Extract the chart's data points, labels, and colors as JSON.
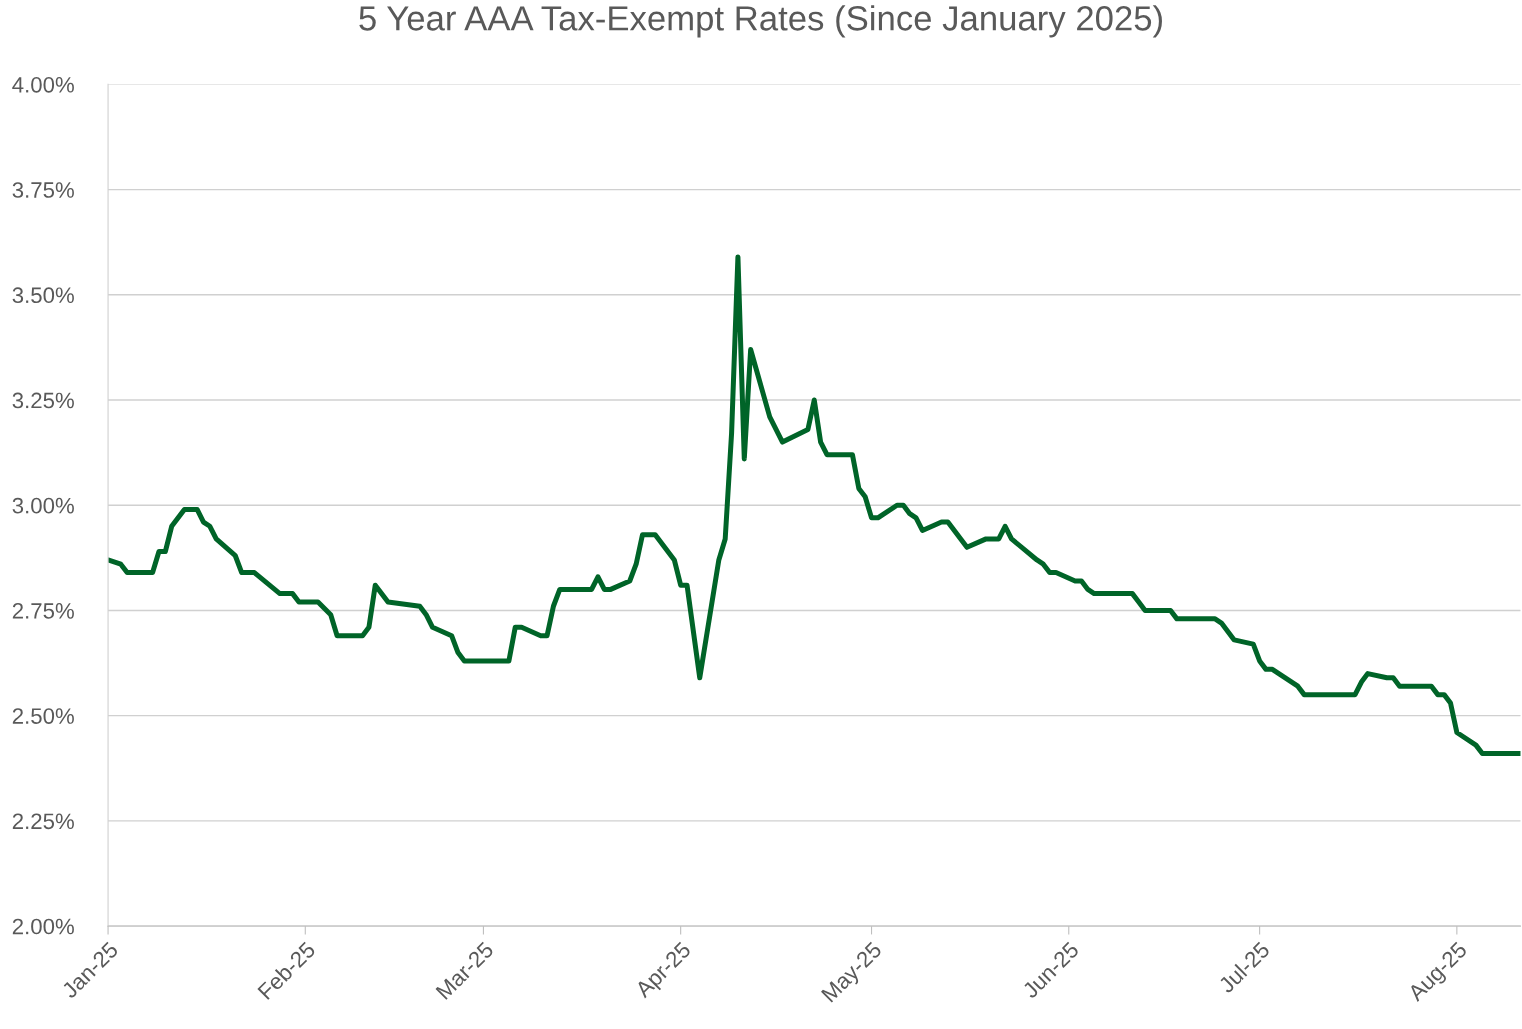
{
  "chart_data": {
    "type": "line",
    "title": "5 Year AAA Tax-Exempt Rates (Since January 2025)",
    "x": [
      "2025-01-01",
      "2025-01-03",
      "2025-01-04",
      "2025-01-08",
      "2025-01-09",
      "2025-01-10",
      "2025-01-11",
      "2025-01-13",
      "2025-01-15",
      "2025-01-16",
      "2025-01-17",
      "2025-01-18",
      "2025-01-21",
      "2025-01-22",
      "2025-01-24",
      "2025-01-28",
      "2025-01-30",
      "2025-01-31",
      "2025-02-03",
      "2025-02-05",
      "2025-02-06",
      "2025-02-10",
      "2025-02-11",
      "2025-02-12",
      "2025-02-14",
      "2025-02-19",
      "2025-02-20",
      "2025-02-21",
      "2025-02-24",
      "2025-02-25",
      "2025-02-26",
      "2025-03-05",
      "2025-03-06",
      "2025-03-07",
      "2025-03-10",
      "2025-03-11",
      "2025-03-12",
      "2025-03-13",
      "2025-03-18",
      "2025-03-19",
      "2025-03-20",
      "2025-03-21",
      "2025-03-24",
      "2025-03-25",
      "2025-03-26",
      "2025-03-28",
      "2025-03-31",
      "2025-04-01",
      "2025-04-02",
      "2025-04-04",
      "2025-04-07",
      "2025-04-08",
      "2025-04-09",
      "2025-04-10",
      "2025-04-11",
      "2025-04-12",
      "2025-04-15",
      "2025-04-17",
      "2025-04-21",
      "2025-04-22",
      "2025-04-23",
      "2025-04-24",
      "2025-04-28",
      "2025-04-29",
      "2025-04-30",
      "2025-05-01",
      "2025-05-02",
      "2025-05-05",
      "2025-05-06",
      "2025-05-07",
      "2025-05-08",
      "2025-05-09",
      "2025-05-12",
      "2025-05-13",
      "2025-05-16",
      "2025-05-19",
      "2025-05-21",
      "2025-05-22",
      "2025-05-23",
      "2025-05-27",
      "2025-05-28",
      "2025-05-29",
      "2025-05-30",
      "2025-06-02",
      "2025-06-03",
      "2025-06-04",
      "2025-06-05",
      "2025-06-11",
      "2025-06-12",
      "2025-06-13",
      "2025-06-17",
      "2025-06-18",
      "2025-06-24",
      "2025-06-25",
      "2025-06-27",
      "2025-06-30",
      "2025-07-01",
      "2025-07-02",
      "2025-07-03",
      "2025-07-07",
      "2025-07-08",
      "2025-07-16",
      "2025-07-17",
      "2025-07-18",
      "2025-07-21",
      "2025-07-22",
      "2025-07-23",
      "2025-07-28",
      "2025-07-29",
      "2025-07-30",
      "2025-07-31",
      "2025-08-01",
      "2025-08-04",
      "2025-08-05",
      "2025-08-11"
    ],
    "series": [
      {
        "color": "#006428",
        "values": [
          2.87,
          2.86,
          2.84,
          2.84,
          2.89,
          2.89,
          2.95,
          2.99,
          2.99,
          2.96,
          2.95,
          2.92,
          2.88,
          2.84,
          2.84,
          2.79,
          2.79,
          2.77,
          2.77,
          2.74,
          2.69,
          2.69,
          2.71,
          2.81,
          2.77,
          2.76,
          2.74,
          2.71,
          2.69,
          2.65,
          2.63,
          2.63,
          2.71,
          2.71,
          2.69,
          2.69,
          2.76,
          2.8,
          2.8,
          2.83,
          2.8,
          2.8,
          2.82,
          2.86,
          2.93,
          2.93,
          2.87,
          2.81,
          2.81,
          2.59,
          2.87,
          2.92,
          3.17,
          3.59,
          3.11,
          3.37,
          3.21,
          3.15,
          3.18,
          3.25,
          3.15,
          3.12,
          3.12,
          3.04,
          3.02,
          2.97,
          2.97,
          3.0,
          3.0,
          2.98,
          2.97,
          2.94,
          2.96,
          2.96,
          2.9,
          2.92,
          2.92,
          2.95,
          2.92,
          2.87,
          2.86,
          2.84,
          2.84,
          2.82,
          2.82,
          2.8,
          2.79,
          2.79,
          2.77,
          2.75,
          2.75,
          2.73,
          2.73,
          2.72,
          2.68,
          2.67,
          2.63,
          2.61,
          2.61,
          2.57,
          2.55,
          2.55,
          2.58,
          2.6,
          2.59,
          2.59,
          2.57,
          2.57,
          2.55,
          2.55,
          2.53,
          2.46,
          2.43,
          2.41,
          2.41
        ]
      }
    ],
    "xlim": [
      "2025-01-01",
      "2025-08-11"
    ],
    "xticks": [
      {
        "value": "2025-01-01",
        "label": "Jan-25"
      },
      {
        "value": "2025-02-01",
        "label": "Feb-25"
      },
      {
        "value": "2025-03-01",
        "label": "Mar-25"
      },
      {
        "value": "2025-04-01",
        "label": "Apr-25"
      },
      {
        "value": "2025-05-01",
        "label": "May-25"
      },
      {
        "value": "2025-06-01",
        "label": "Jun-25"
      },
      {
        "value": "2025-07-01",
        "label": "Jul-25"
      },
      {
        "value": "2025-08-01",
        "label": "Aug-25"
      }
    ],
    "ylim": [
      2.0,
      4.0
    ],
    "yticks": [
      {
        "value": 2.0,
        "label": "2.00%"
      },
      {
        "value": 2.25,
        "label": "2.25%"
      },
      {
        "value": 2.5,
        "label": "2.50%"
      },
      {
        "value": 2.75,
        "label": "2.75%"
      },
      {
        "value": 3.0,
        "label": "3.00%"
      },
      {
        "value": 3.25,
        "label": "3.25%"
      },
      {
        "value": 3.5,
        "label": "3.50%"
      },
      {
        "value": 3.75,
        "label": "3.75%"
      },
      {
        "value": 4.0,
        "label": "4.00%"
      }
    ],
    "grid": "y",
    "marker": "none",
    "line_style": "solid",
    "legend": false
  }
}
